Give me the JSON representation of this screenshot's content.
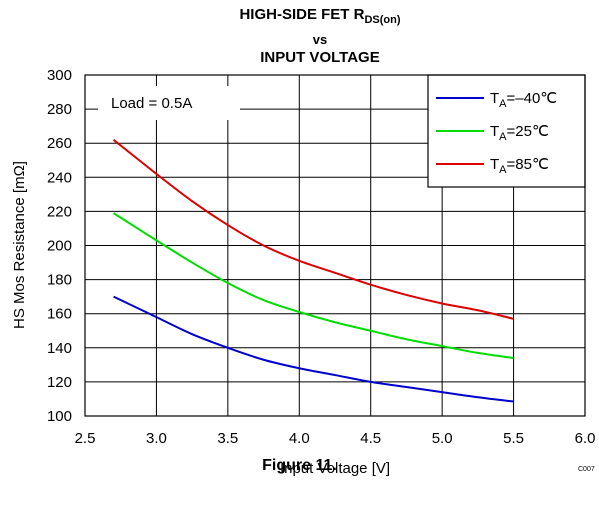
{
  "chart_data": {
    "type": "line",
    "title_line1_main": "HIGH-SIDE FET R",
    "title_line1_sub": "DS(on)",
    "title_line2": "vs",
    "title_line3": "INPUT VOLTAGE",
    "xlabel": "Input Voltage [V]",
    "ylabel": "HS Mos Resistance [mΩ]",
    "xlim": [
      2.5,
      6.0
    ],
    "ylim": [
      100,
      300
    ],
    "xticks": [
      "2.5",
      "3.0",
      "3.5",
      "4.0",
      "4.5",
      "5.0",
      "5.5",
      "6.0"
    ],
    "yticks": [
      "100",
      "120",
      "140",
      "160",
      "180",
      "200",
      "220",
      "240",
      "260",
      "280",
      "300"
    ],
    "grid": true,
    "legend_position": "top-right",
    "annotation": "Load = 0.5A",
    "code": "C007",
    "series": [
      {
        "name_prefix": "T",
        "name_sub": "A",
        "name_suffix": "=–40℃",
        "color": "#0000cc",
        "x": [
          2.7,
          3.0,
          3.25,
          3.5,
          3.75,
          4.0,
          4.25,
          4.5,
          4.75,
          5.0,
          5.25,
          5.5
        ],
        "y": [
          170,
          158,
          148,
          140,
          133,
          128,
          124,
          120,
          117,
          114,
          111,
          108.5
        ]
      },
      {
        "name_prefix": "T",
        "name_sub": "A",
        "name_suffix": "=25℃",
        "color": "#00dd00",
        "x": [
          2.7,
          3.0,
          3.25,
          3.5,
          3.75,
          4.0,
          4.25,
          4.5,
          4.75,
          5.0,
          5.25,
          5.5
        ],
        "y": [
          219,
          203,
          190,
          178,
          168,
          161,
          155,
          150,
          145,
          141,
          137,
          134
        ]
      },
      {
        "name_prefix": "T",
        "name_sub": "A",
        "name_suffix": "=85℃",
        "color": "#dd0000",
        "x": [
          2.7,
          3.0,
          3.25,
          3.5,
          3.75,
          4.0,
          4.25,
          4.5,
          4.75,
          5.0,
          5.25,
          5.5
        ],
        "y": [
          262,
          242,
          226,
          212,
          200,
          191,
          184,
          177,
          171,
          166,
          162,
          157
        ]
      }
    ]
  },
  "figure_caption": "Figure 11."
}
